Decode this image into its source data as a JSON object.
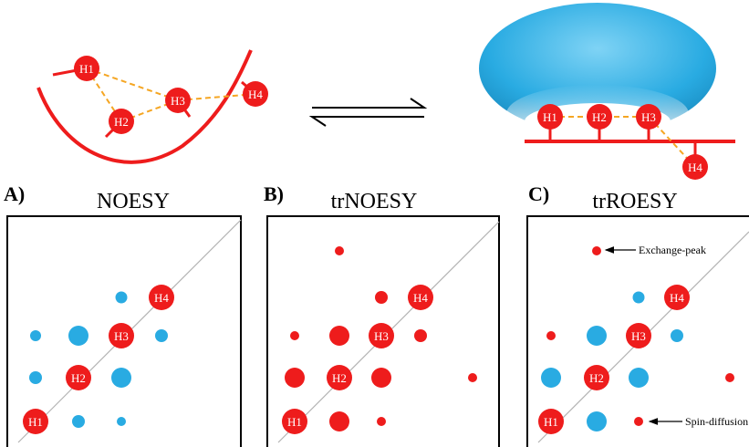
{
  "colors": {
    "red": "#ee1c1c",
    "blue": "#29abe2",
    "dash": "#f5a623",
    "white": "#ffffff"
  },
  "top": {
    "free_ligand": {
      "protons": [
        "H1",
        "H2",
        "H3",
        "H4"
      ]
    },
    "equilibrium": "double-harpoon-arrow",
    "bound_ligand": {
      "protons": [
        "H1",
        "H2",
        "H3",
        "H4"
      ],
      "protein": "blue-protein-blob"
    }
  },
  "panels": [
    {
      "letter": "A)",
      "title": "NOESY",
      "diagonal_peaks": [
        "H1",
        "H2",
        "H3",
        "H4"
      ],
      "cross_peak_color": "blue"
    },
    {
      "letter": "B)",
      "title": "trNOESY",
      "diagonal_peaks": [
        "H1",
        "H2",
        "H3",
        "H4"
      ],
      "cross_peak_color": "red"
    },
    {
      "letter": "C)",
      "title": "trROESY",
      "diagonal_peaks": [
        "H1",
        "H2",
        "H3",
        "H4"
      ],
      "cross_peak_color": "blue",
      "annotations": {
        "exchange": "Exchange-peak",
        "spin_diffusion": "Spin-diffusion"
      }
    }
  ]
}
